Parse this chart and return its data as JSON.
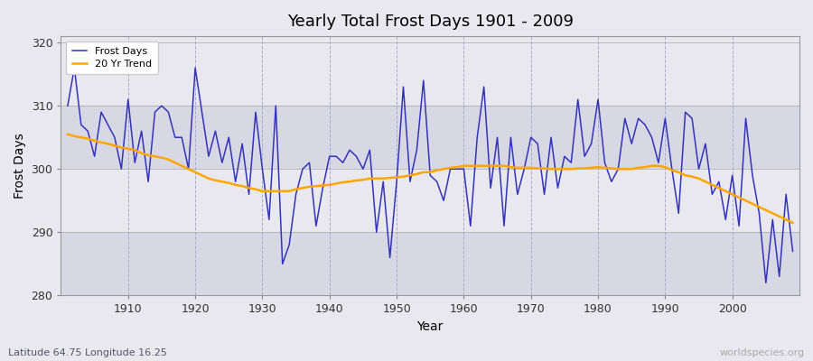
{
  "title": "Yearly Total Frost Days 1901 - 2009",
  "xlabel": "Year",
  "ylabel": "Frost Days",
  "subtitle": "Latitude 64.75 Longitude 16.25",
  "watermark": "worldspecies.org",
  "line_color": "#3333bb",
  "trend_color": "#ffa500",
  "bg_color": "#e8e8ee",
  "band1_color": "#d8d8e4",
  "band2_color": "#e8e8ee",
  "ylim": [
    280,
    321
  ],
  "yticks": [
    280,
    290,
    300,
    310,
    320
  ],
  "xlim": [
    1900,
    2010
  ],
  "years": [
    1901,
    1902,
    1903,
    1904,
    1905,
    1906,
    1907,
    1908,
    1909,
    1910,
    1911,
    1912,
    1913,
    1914,
    1915,
    1916,
    1917,
    1918,
    1919,
    1920,
    1921,
    1922,
    1923,
    1924,
    1925,
    1926,
    1927,
    1928,
    1929,
    1930,
    1931,
    1932,
    1933,
    1934,
    1935,
    1936,
    1937,
    1938,
    1939,
    1940,
    1941,
    1942,
    1943,
    1944,
    1945,
    1946,
    1947,
    1948,
    1949,
    1950,
    1951,
    1952,
    1953,
    1954,
    1955,
    1956,
    1957,
    1958,
    1959,
    1960,
    1961,
    1962,
    1963,
    1964,
    1965,
    1966,
    1967,
    1968,
    1969,
    1970,
    1971,
    1972,
    1973,
    1974,
    1975,
    1976,
    1977,
    1978,
    1979,
    1980,
    1981,
    1982,
    1983,
    1984,
    1985,
    1986,
    1987,
    1988,
    1989,
    1990,
    1991,
    1992,
    1993,
    1994,
    1995,
    1996,
    1997,
    1998,
    1999,
    2000,
    2001,
    2002,
    2003,
    2004,
    2005,
    2006,
    2007,
    2008,
    2009
  ],
  "frost_days": [
    310,
    316,
    307,
    306,
    302,
    309,
    307,
    305,
    300,
    311,
    301,
    306,
    298,
    309,
    310,
    309,
    305,
    305,
    300,
    316,
    309,
    302,
    306,
    301,
    305,
    298,
    304,
    296,
    309,
    300,
    292,
    310,
    285,
    288,
    296,
    300,
    301,
    291,
    297,
    302,
    302,
    301,
    303,
    302,
    300,
    303,
    290,
    298,
    286,
    298,
    313,
    298,
    303,
    314,
    299,
    298,
    295,
    300,
    300,
    300,
    291,
    305,
    313,
    297,
    305,
    291,
    305,
    296,
    300,
    305,
    304,
    296,
    305,
    297,
    302,
    301,
    311,
    302,
    304,
    311,
    301,
    298,
    300,
    308,
    304,
    308,
    307,
    305,
    301,
    308,
    300,
    293,
    309,
    308,
    300,
    304,
    296,
    298,
    292,
    299,
    291,
    308,
    299,
    293,
    282,
    292,
    283,
    296,
    287
  ],
  "trend": [
    305.5,
    305.2,
    305.0,
    304.8,
    304.5,
    304.2,
    304.0,
    303.7,
    303.4,
    303.2,
    303.0,
    302.5,
    302.2,
    302.0,
    301.8,
    301.5,
    301.0,
    300.5,
    300.0,
    299.5,
    299.0,
    298.5,
    298.2,
    298.0,
    297.8,
    297.5,
    297.3,
    297.0,
    296.8,
    296.5,
    296.5,
    296.5,
    296.5,
    296.5,
    296.8,
    297.0,
    297.2,
    297.3,
    297.4,
    297.5,
    297.7,
    297.9,
    298.0,
    298.2,
    298.3,
    298.5,
    298.5,
    298.5,
    298.6,
    298.7,
    298.8,
    299.0,
    299.2,
    299.5,
    299.5,
    299.8,
    300.0,
    300.2,
    300.3,
    300.5,
    300.5,
    300.5,
    300.5,
    300.5,
    300.5,
    300.5,
    300.3,
    300.2,
    300.2,
    300.2,
    300.1,
    300.1,
    300.0,
    300.0,
    300.0,
    300.0,
    300.1,
    300.1,
    300.2,
    300.3,
    300.2,
    300.1,
    300.0,
    300.0,
    300.0,
    300.2,
    300.3,
    300.5,
    300.5,
    300.3,
    299.8,
    299.5,
    299.0,
    298.8,
    298.5,
    298.0,
    297.5,
    297.0,
    296.5,
    296.0,
    295.5,
    295.0,
    294.5,
    294.0,
    293.5,
    293.0,
    292.5,
    292.0,
    291.5
  ]
}
